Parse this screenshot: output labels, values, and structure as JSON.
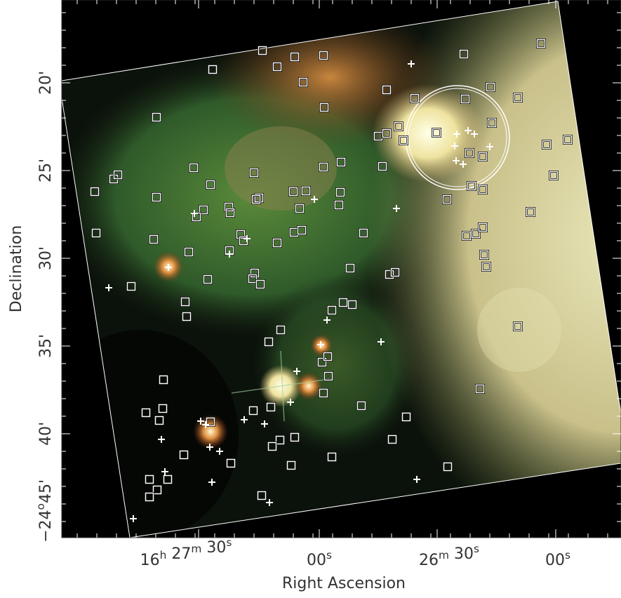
{
  "figure": {
    "x_axis": {
      "label": "Right Ascension",
      "tick_labels": [
        "16h 27m 30s",
        "00s",
        "26m 30s",
        "00s"
      ]
    },
    "y_axis": {
      "label": "Declination",
      "tick_labels": [
        "20'",
        "25'",
        "30'",
        "35'",
        "40'",
        "45'",
        "−24o"
      ]
    }
  }
}
